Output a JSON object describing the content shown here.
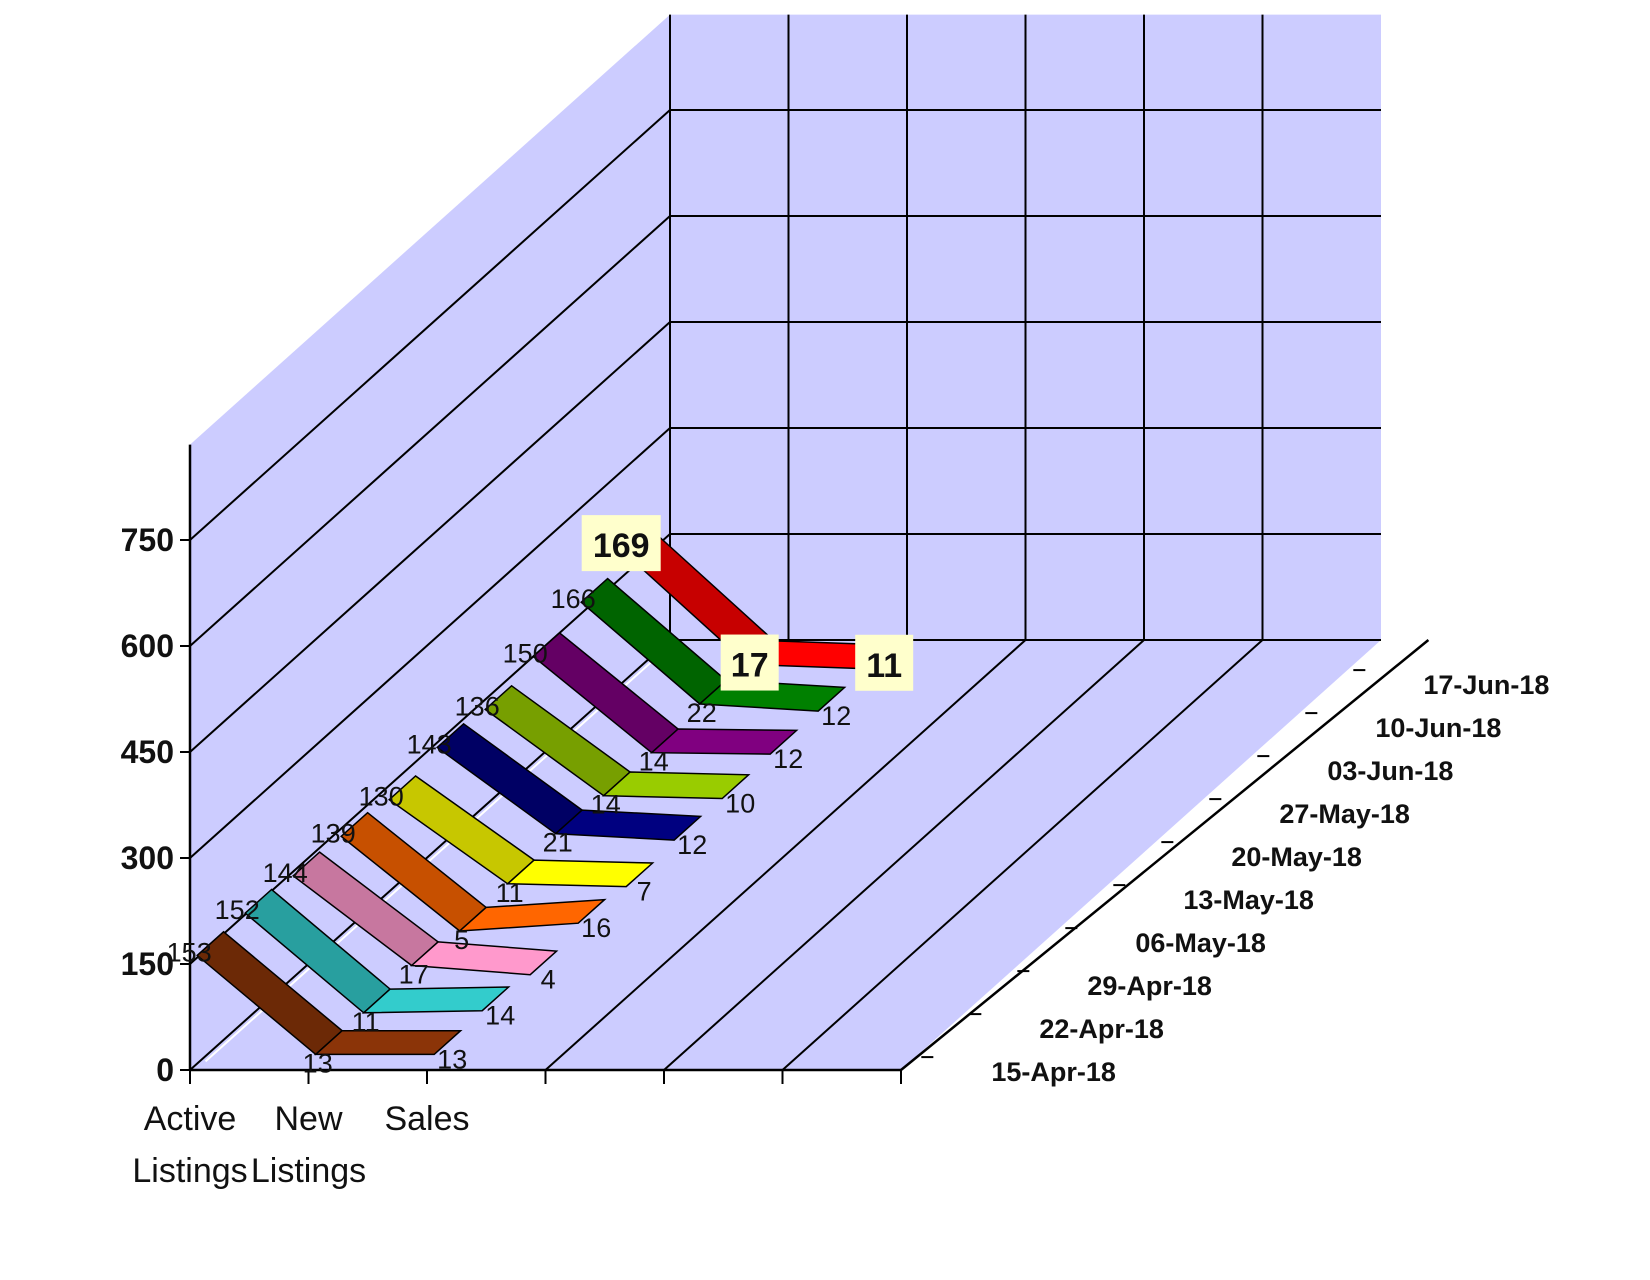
{
  "chart_data": {
    "type": "line",
    "style": "3d-ribbon",
    "categories": [
      "Active Listings",
      "New Listings",
      "Sales"
    ],
    "category_lines": [
      [
        "Active",
        "Listings"
      ],
      [
        "New",
        "Listings"
      ],
      [
        "Sales",
        ""
      ]
    ],
    "ylim": [
      0,
      750
    ],
    "yticks": [
      "0",
      "150",
      "300",
      "450",
      "600",
      "750"
    ],
    "grid": true,
    "legend": "none",
    "series": [
      {
        "name": "15-Apr-18",
        "values": [
          153,
          13,
          13
        ],
        "labels": [
          "153",
          "13",
          "13"
        ],
        "color": "#8b3408"
      },
      {
        "name": "22-Apr-18",
        "values": [
          152,
          11,
          14
        ],
        "labels": [
          "152",
          "11",
          "14"
        ],
        "color": "#33cccc"
      },
      {
        "name": "29-Apr-18",
        "values": [
          144,
          17,
          4
        ],
        "labels": [
          "144",
          "17",
          "4"
        ],
        "color": "#ff99cc"
      },
      {
        "name": "06-May-18",
        "values": [
          139,
          5,
          16
        ],
        "labels": [
          "139",
          "5",
          "16"
        ],
        "color": "#ff6600"
      },
      {
        "name": "13-May-18",
        "values": [
          130,
          11,
          7
        ],
        "labels": [
          "130",
          "11",
          "7"
        ],
        "color": "#ffff00"
      },
      {
        "name": "20-May-18",
        "values": [
          143,
          21,
          12
        ],
        "labels": [
          "143",
          "21",
          "12"
        ],
        "color": "#000080"
      },
      {
        "name": "27-May-18",
        "values": [
          136,
          14,
          10
        ],
        "labels": [
          "136",
          "14",
          "10"
        ],
        "color": "#99cc00"
      },
      {
        "name": "03-Jun-18",
        "values": [
          150,
          14,
          12
        ],
        "labels": [
          "150",
          "14",
          "12"
        ],
        "color": "#800080"
      },
      {
        "name": "10-Jun-18",
        "values": [
          166,
          22,
          12
        ],
        "labels": [
          "166",
          "22",
          "12"
        ],
        "color": "#008000"
      },
      {
        "name": "17-Jun-18",
        "values": [
          169,
          17,
          11
        ],
        "labels": [
          "169",
          "17",
          "11"
        ],
        "color": "#ff0000"
      }
    ],
    "colors": {
      "wall": "#ccccff",
      "gridline": "#000000",
      "highlight_label_bg": "#ffffcc"
    }
  }
}
